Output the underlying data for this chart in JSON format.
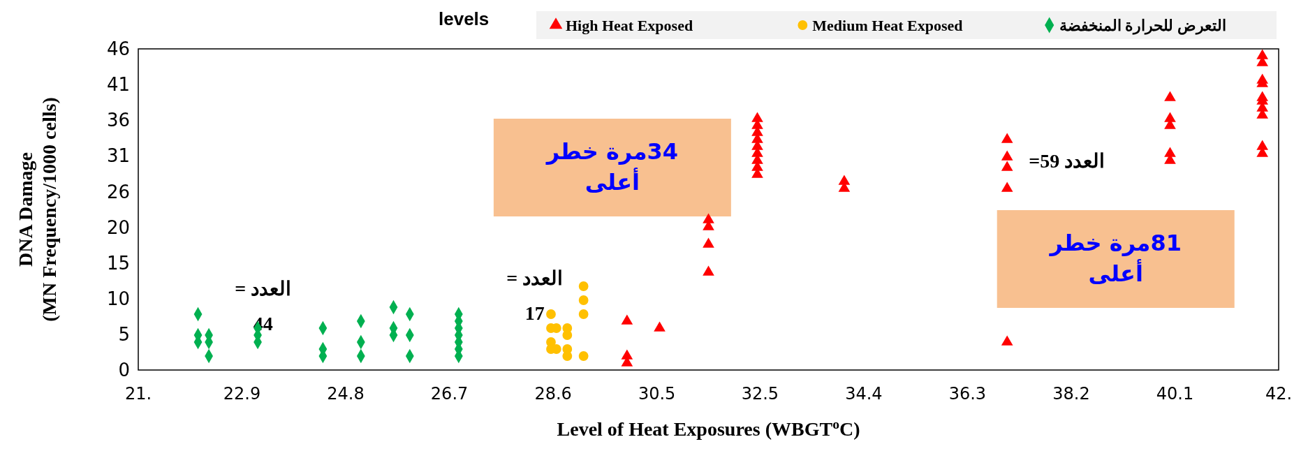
{
  "chart_data": {
    "type": "scatter",
    "title": "levels",
    "xlabel": "Level of Heat Exposures (WBGT$^{o}$C)",
    "ylabel": "DNA Damage\n(MN Frequency/1000 cells)",
    "xlim": [
      21,
      42
    ],
    "ylim": [
      0,
      46
    ],
    "xticks": [
      {
        "value": 21,
        "label": "21."
      },
      {
        "value": 22.91,
        "label": "22.9"
      },
      {
        "value": 24.82,
        "label": "24.8"
      },
      {
        "value": 26.73,
        "label": "26.7"
      },
      {
        "value": 28.64,
        "label": "28.6"
      },
      {
        "value": 30.55,
        "label": "30.5"
      },
      {
        "value": 32.45,
        "label": "32.5"
      },
      {
        "value": 34.36,
        "label": "34.4"
      },
      {
        "value": 36.27,
        "label": "36.3"
      },
      {
        "value": 38.18,
        "label": "38.2"
      },
      {
        "value": 40.09,
        "label": "40.1"
      },
      {
        "value": 42,
        "label": "42."
      }
    ],
    "yticks": [
      0,
      {
        "value": 5.11,
        "label": "5"
      },
      {
        "value": 10.22,
        "label": "10"
      },
      {
        "value": 15.33,
        "label": "15"
      },
      {
        "value": 20.44,
        "label": "20"
      },
      {
        "value": 25.56,
        "label": "26"
      },
      {
        "value": 30.67,
        "label": "31"
      },
      {
        "value": 35.78,
        "label": "36"
      },
      {
        "value": 40.89,
        "label": "41"
      },
      46
    ],
    "grid": false,
    "legend": "top",
    "series": [
      {
        "name": "High Heat Exposed",
        "color": "#ff0000",
        "marker": "triangle",
        "x": [
          30,
          30,
          30,
          30.6,
          31.5,
          31.5,
          31.5,
          31.5,
          32.4,
          32.4,
          32.4,
          32.4,
          32.4,
          32.4,
          32.4,
          32.4,
          32.4,
          34,
          34,
          37,
          37,
          37,
          37,
          37,
          40,
          40,
          40,
          40,
          40,
          41.7,
          41.7,
          41.7,
          41.7,
          41.7,
          41.7,
          41.7,
          41.7,
          41.7,
          41.7
        ],
        "values": [
          7,
          2,
          1,
          6,
          14,
          18,
          20.5,
          21.5,
          28,
          29,
          30,
          31,
          32,
          33,
          34,
          35,
          36,
          27,
          26,
          33,
          30.5,
          29,
          26,
          4,
          39,
          36,
          35,
          31,
          30,
          45,
          44,
          41.5,
          41,
          39,
          38.5,
          37.5,
          36.5,
          32,
          31
        ]
      },
      {
        "name": "Medium Heat Exposed",
        "color": "#ffc000",
        "marker": "circle",
        "x": [
          28.6,
          28.6,
          28.6,
          28.6,
          28.7,
          28.7,
          28.9,
          28.9,
          28.9,
          28.9,
          29.2,
          29.2,
          29.2,
          29.2
        ],
        "values": [
          8,
          6,
          4,
          3,
          6,
          3,
          6,
          5,
          3,
          2,
          12,
          10,
          8,
          2
        ]
      },
      {
        "name": "التعرض للحرارة المنخفضة",
        "color": "#00b050",
        "marker": "diamond",
        "x": [
          22.1,
          22.1,
          22.1,
          22.3,
          22.3,
          22.3,
          23.2,
          23.2,
          23.2,
          24.4,
          24.4,
          24.4,
          25.1,
          25.1,
          25.1,
          25.7,
          25.7,
          25.7,
          26,
          26,
          26,
          26.9,
          26.9,
          26.9,
          26.9,
          26.9,
          26.9,
          26.9
        ],
        "values": [
          8,
          5,
          4,
          5,
          4,
          2,
          6,
          5,
          4,
          6,
          3,
          2,
          7,
          4,
          2,
          9,
          6,
          5,
          8,
          5,
          2,
          8,
          7,
          6,
          5,
          4,
          3,
          2
        ]
      }
    ],
    "annotations": [
      "العدد =\n44",
      "العدد =\n17",
      "العدد 59=",
      "34مرة خطر\nأعلى",
      "81مرة خطر\nأعلى"
    ]
  }
}
